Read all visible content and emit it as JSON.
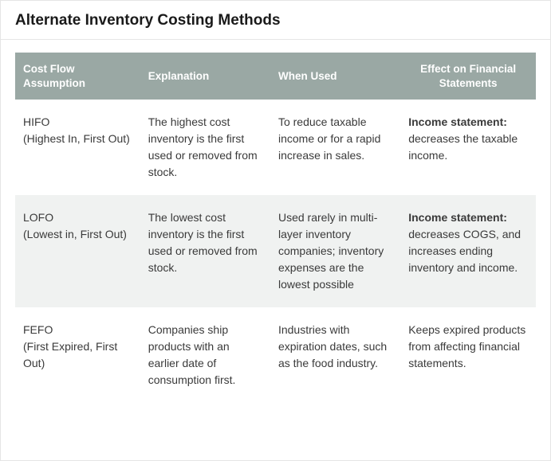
{
  "title": "Alternate Inventory Costing Methods",
  "table": {
    "type": "table",
    "header_bg": "#9aa8a4",
    "header_fg": "#ffffff",
    "alt_row_bg": "#f0f2f1",
    "body_fg": "#3a3a3a",
    "border_color": "#e5e5e5",
    "columns": [
      {
        "label": "Cost Flow Assumption",
        "width_pct": 24,
        "align": "left"
      },
      {
        "label": "Explanation",
        "width_pct": 25,
        "align": "left"
      },
      {
        "label": "When Used",
        "width_pct": 25,
        "align": "left"
      },
      {
        "label": "Effect on Financial Statements",
        "width_pct": 26,
        "align": "center"
      }
    ],
    "rows": [
      {
        "abbr": "HIFO",
        "full": "(Highest In, First Out)",
        "explanation": "The highest cost inventory is the first used or removed from stock.",
        "when": "To reduce taxable income or for a rapid increase in sales.",
        "effect_lead": "Income statement:",
        "effect_rest": " decreases the taxable income.",
        "alt": false
      },
      {
        "abbr": "LOFO",
        "full": "(Lowest in, First Out)",
        "explanation": "The lowest cost inventory is the first used or removed from stock.",
        "when": "Used rarely in multi-layer inventory companies; inventory expenses are the lowest possible",
        "effect_lead": "Income statement:",
        "effect_rest": " decreases COGS, and increases ending inventory and income.",
        "alt": true
      },
      {
        "abbr": "FEFO",
        "full": "(First Expired, First Out)",
        "explanation": "Companies ship products with an earlier date of consumption first.",
        "when": "Industries with expiration dates, such as the food industry.",
        "effect_lead": "",
        "effect_rest": "Keeps expired products from affecting financial statements.",
        "alt": false
      }
    ]
  }
}
